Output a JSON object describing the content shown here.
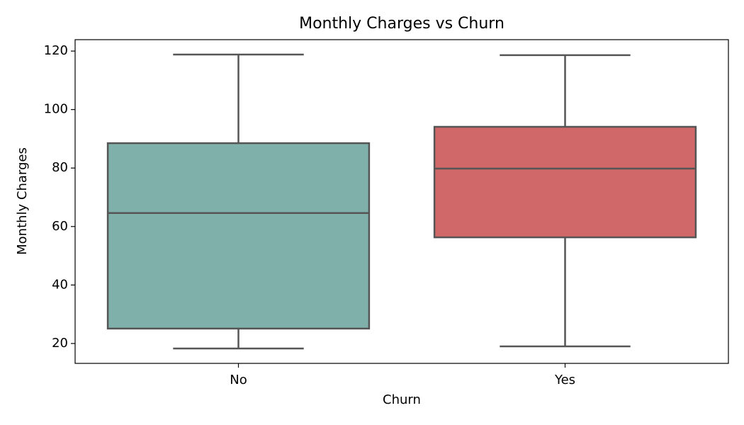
{
  "chart_data": {
    "type": "box",
    "title": "Monthly Charges vs Churn",
    "x_label": "Churn",
    "y_label": "Monthly Charges",
    "categories": [
      "No",
      "Yes"
    ],
    "boxes": [
      {
        "min": 18.3,
        "q1": 25.1,
        "median": 64.6,
        "q3": 88.5,
        "max": 118.8,
        "color": "#7fb0aa"
      },
      {
        "min": 19.0,
        "q1": 56.3,
        "median": 79.8,
        "q3": 94.1,
        "max": 118.6,
        "color": "#d0686a"
      }
    ],
    "ylim": [
      13.2,
      123.9
    ],
    "yticks": [
      20,
      40,
      60,
      80,
      100,
      120
    ]
  }
}
